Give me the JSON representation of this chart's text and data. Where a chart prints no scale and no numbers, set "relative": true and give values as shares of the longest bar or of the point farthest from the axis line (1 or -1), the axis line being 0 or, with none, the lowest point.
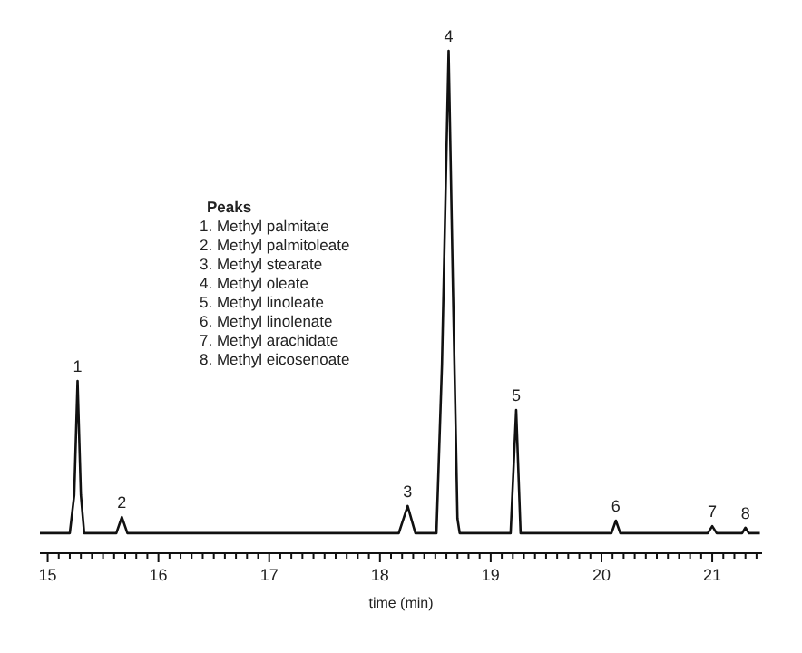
{
  "chart_data": {
    "type": "line",
    "relative": true,
    "xlabel": "time (min)",
    "xlim": [
      14.93,
      21.45
    ],
    "xticks": [
      15,
      {
        "value": 15.1,
        "label": null
      },
      {
        "value": 15.2,
        "label": null
      },
      {
        "value": 15.3,
        "label": null
      },
      {
        "value": 15.4,
        "label": null
      },
      {
        "value": 15.5,
        "label": null
      },
      {
        "value": 15.6,
        "label": null
      },
      {
        "value": 15.7,
        "label": null
      },
      {
        "value": 15.8,
        "label": null
      },
      {
        "value": 15.9,
        "label": null
      },
      16,
      {
        "value": 16.1,
        "label": null
      },
      {
        "value": 16.2,
        "label": null
      },
      {
        "value": 16.3,
        "label": null
      },
      {
        "value": 16.4,
        "label": null
      },
      {
        "value": 16.5,
        "label": null
      },
      {
        "value": 16.6,
        "label": null
      },
      {
        "value": 16.7,
        "label": null
      },
      {
        "value": 16.8,
        "label": null
      },
      {
        "value": 16.9,
        "label": null
      },
      17,
      {
        "value": 17.1,
        "label": null
      },
      {
        "value": 17.2,
        "label": null
      },
      {
        "value": 17.3,
        "label": null
      },
      {
        "value": 17.4,
        "label": null
      },
      {
        "value": 17.5,
        "label": null
      },
      {
        "value": 17.6,
        "label": null
      },
      {
        "value": 17.7,
        "label": null
      },
      {
        "value": 17.8,
        "label": null
      },
      {
        "value": 17.9,
        "label": null
      },
      18,
      {
        "value": 18.1,
        "label": null
      },
      {
        "value": 18.2,
        "label": null
      },
      {
        "value": 18.3,
        "label": null
      },
      {
        "value": 18.4,
        "label": null
      },
      {
        "value": 18.5,
        "label": null
      },
      {
        "value": 18.6,
        "label": null
      },
      {
        "value": 18.7,
        "label": null
      },
      {
        "value": 18.8,
        "label": null
      },
      {
        "value": 18.9,
        "label": null
      },
      19,
      {
        "value": 19.1,
        "label": null
      },
      {
        "value": 19.2,
        "label": null
      },
      {
        "value": 19.3,
        "label": null
      },
      {
        "value": 19.4,
        "label": null
      },
      {
        "value": 19.5,
        "label": null
      },
      {
        "value": 19.6,
        "label": null
      },
      {
        "value": 19.7,
        "label": null
      },
      {
        "value": 19.8,
        "label": null
      },
      {
        "value": 19.9,
        "label": null
      },
      20,
      {
        "value": 20.1,
        "label": null
      },
      {
        "value": 20.2,
        "label": null
      },
      {
        "value": 20.3,
        "label": null
      },
      {
        "value": 20.4,
        "label": null
      },
      {
        "value": 20.5,
        "label": null
      },
      {
        "value": 20.6,
        "label": null
      },
      {
        "value": 20.7,
        "label": null
      },
      {
        "value": 20.8,
        "label": null
      },
      {
        "value": 20.9,
        "label": null
      },
      21,
      {
        "value": 21.1,
        "label": null
      },
      {
        "value": 21.2,
        "label": null
      },
      {
        "value": 21.3,
        "label": null
      },
      {
        "value": 21.4,
        "label": null
      }
    ],
    "tick_labels": "x",
    "grid": false,
    "marker": "none",
    "line_style": "solid",
    "series": [
      {
        "color": "#111111",
        "x": [
          14.93,
          15.2,
          15.24,
          15.27,
          15.3,
          15.33,
          15.62,
          15.67,
          15.72,
          18.17,
          18.25,
          18.32,
          18.51,
          18.56,
          18.62,
          18.66,
          18.7,
          18.72,
          19.18,
          19.23,
          19.27,
          20.09,
          20.13,
          20.17,
          20.96,
          21.0,
          21.04,
          21.27,
          21.3,
          21.33,
          21.43
        ],
        "values": [
          0.04,
          0.04,
          0.116,
          0.343,
          0.116,
          0.04,
          0.04,
          0.072,
          0.04,
          0.04,
          0.094,
          0.04,
          0.04,
          0.375,
          1,
          0.52,
          0.069,
          0.04,
          0.04,
          0.285,
          0.04,
          0.04,
          0.065,
          0.04,
          0.04,
          0.054,
          0.04,
          0.04,
          0.051,
          0.04,
          0.04
        ]
      }
    ],
    "annotations": [
      "Peaks",
      "1. Methyl palmitate",
      "2. Methyl palmitoleate",
      "3. Methyl stearate",
      "4. Methyl oleate",
      "5. Methyl linoleate",
      "6. Methyl linolenate",
      "7. Methyl arachidate",
      "8. Methyl eicosenoate",
      {
        "text": "1",
        "x": 15.27,
        "y": 0.343
      },
      {
        "text": "2",
        "x": 15.67,
        "y": 0.072
      },
      {
        "text": "3",
        "x": 18.25,
        "y": 0.094
      },
      {
        "text": "4",
        "x": 18.62,
        "y": 1
      },
      {
        "text": "5",
        "x": 19.23,
        "y": 0.285
      },
      {
        "text": "6",
        "x": 20.13,
        "y": 0.065
      },
      {
        "text": "7",
        "x": 21.0,
        "y": 0.054
      },
      {
        "text": "8",
        "x": 21.3,
        "y": 0.051
      }
    ]
  }
}
